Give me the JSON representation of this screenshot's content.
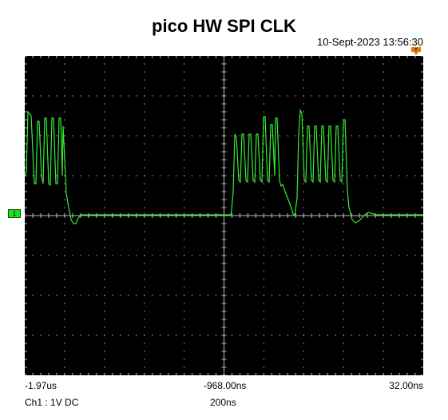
{
  "title": "pico HW SPI CLK",
  "timestamp": "10-Sept-2023 13:56:30",
  "channel_marker": "1",
  "time_labels": {
    "left": "-1.97us",
    "mid": "-968.00ns",
    "right": "32.00ns"
  },
  "channel_info": "Ch1 : 1V  DC",
  "timebase": "200ns",
  "colors": {
    "screen_bg": "#000000",
    "trace": "#33ee33",
    "grid": "#bbbbbb",
    "trigger_marker": "#e07a10"
  }
}
